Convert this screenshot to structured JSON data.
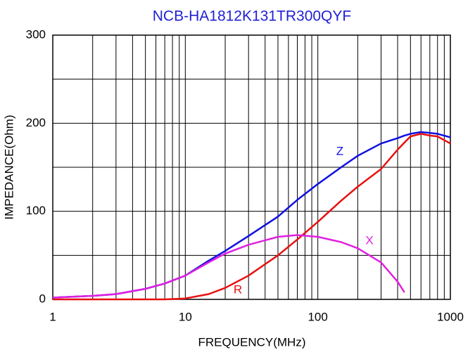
{
  "chart_data": {
    "type": "line",
    "title": "NCB-HA1812K131TR300QYF",
    "x_label": "FREQUENCY(MHz)",
    "y_label": "IMPEDANCE(Ohm)",
    "xlog": true,
    "minor_grid": true,
    "grid": true,
    "xlim": [
      1,
      1000
    ],
    "xticks": [
      1,
      10,
      100,
      1000
    ],
    "ylim": [
      0,
      300
    ],
    "yticks": [
      0,
      100,
      200,
      300
    ],
    "y_minor_ticks": [
      50,
      150,
      250
    ],
    "x": [
      1,
      2,
      3,
      5,
      7,
      10,
      15,
      20,
      30,
      50,
      70,
      100,
      150,
      200,
      300,
      400,
      450,
      500,
      600,
      700,
      800,
      1000
    ],
    "series": [
      {
        "name": "Z",
        "color": "#1010e0",
        "values": [
          2,
          4,
          6,
          12,
          18,
          27,
          44,
          55,
          72,
          94,
          113,
          131,
          150,
          163,
          177,
          183,
          186,
          188,
          190,
          189,
          188,
          184
        ]
      },
      {
        "name": "R",
        "color": "#e81010",
        "values": [
          0,
          0,
          0,
          0,
          0,
          1,
          6,
          13,
          27,
          50,
          68,
          88,
          112,
          128,
          148,
          170,
          178,
          185,
          188,
          186,
          185,
          177
        ]
      },
      {
        "name": "X",
        "color": "#e020e0",
        "values": [
          2,
          4,
          6,
          12,
          18,
          27,
          42,
          52,
          62,
          71,
          73,
          71,
          65,
          58,
          42,
          20,
          8,
          null,
          null,
          null,
          null,
          null
        ]
      }
    ]
  }
}
